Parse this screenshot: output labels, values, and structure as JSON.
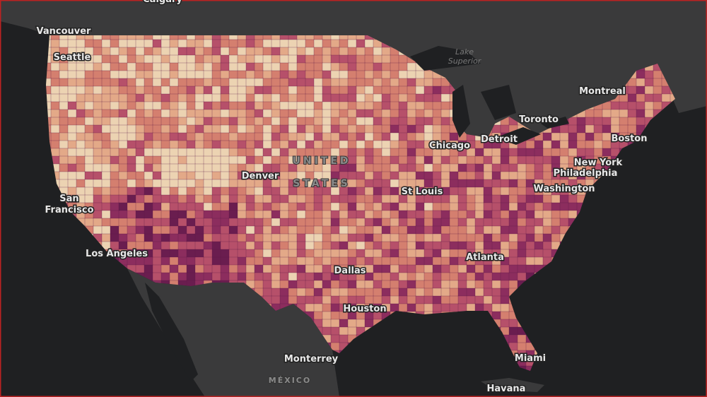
{
  "map": {
    "region_labels": {
      "country": [
        "UNITED",
        "STATES"
      ],
      "mexico": "MÉXICO",
      "lake": [
        "Lake",
        "Superior"
      ]
    },
    "cities": [
      {
        "lines": [
          "Calgary"
        ]
      },
      {
        "lines": [
          "Vancouver"
        ]
      },
      {
        "lines": [
          "Seattle"
        ]
      },
      {
        "lines": [
          "San",
          "Francisco"
        ]
      },
      {
        "lines": [
          "Los Angeles"
        ]
      },
      {
        "lines": [
          "Denver"
        ]
      },
      {
        "lines": [
          "Dallas"
        ]
      },
      {
        "lines": [
          "Houston"
        ]
      },
      {
        "lines": [
          "Monterrey"
        ]
      },
      {
        "lines": [
          "Havana"
        ]
      },
      {
        "lines": [
          "Miami"
        ]
      },
      {
        "lines": [
          "Atlanta"
        ]
      },
      {
        "lines": [
          "St Louis"
        ]
      },
      {
        "lines": [
          "Chicago"
        ]
      },
      {
        "lines": [
          "Detroit"
        ]
      },
      {
        "lines": [
          "Toronto"
        ]
      },
      {
        "lines": [
          "Montreal"
        ]
      },
      {
        "lines": [
          "Boston"
        ]
      },
      {
        "lines": [
          "New York"
        ]
      },
      {
        "lines": [
          "Philadelphia"
        ]
      },
      {
        "lines": [
          "Washington"
        ]
      }
    ]
  }
}
